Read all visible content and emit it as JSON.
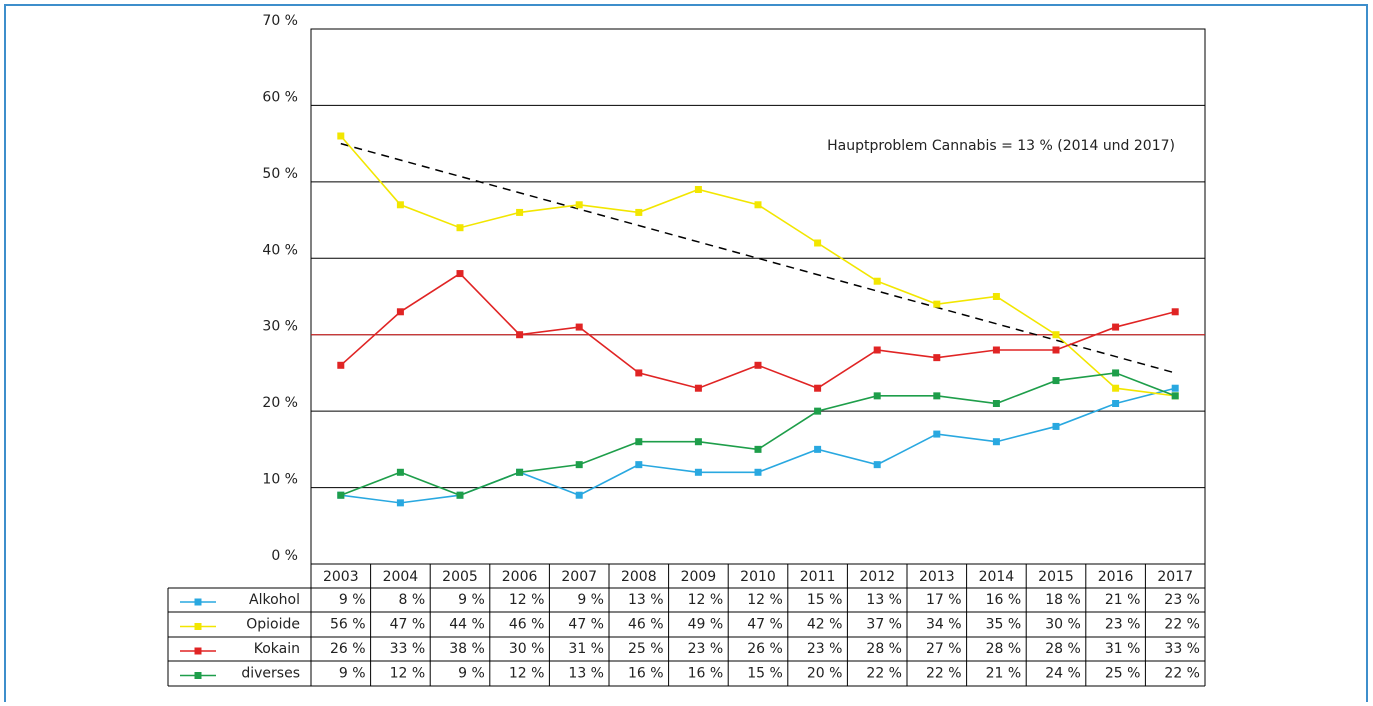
{
  "chart_data": {
    "type": "line",
    "categories": [
      "2003",
      "2004",
      "2005",
      "2006",
      "2007",
      "2008",
      "2009",
      "2010",
      "2011",
      "2012",
      "2013",
      "2014",
      "2015",
      "2016",
      "2017"
    ],
    "series": [
      {
        "name": "Alkohol",
        "color": "#29a8e0",
        "values": [
          9,
          8,
          9,
          12,
          9,
          13,
          12,
          12,
          15,
          13,
          17,
          16,
          18,
          21,
          23
        ],
        "value_labels": [
          "9 %",
          "8 %",
          "9 %",
          "12 %",
          "9 %",
          "13 %",
          "12 %",
          "12 %",
          "15 %",
          "13 %",
          "17 %",
          "16 %",
          "18 %",
          "21 %",
          "23 %"
        ]
      },
      {
        "name": "Opioide",
        "color": "#f2e600",
        "values": [
          56,
          47,
          44,
          46,
          47,
          46,
          49,
          47,
          42,
          37,
          34,
          35,
          30,
          23,
          22
        ],
        "value_labels": [
          "56 %",
          "47 %",
          "44 %",
          "46 %",
          "47 %",
          "46 %",
          "49 %",
          "47 %",
          "42 %",
          "37 %",
          "34 %",
          "35 %",
          "30 %",
          "23 %",
          "22 %"
        ]
      },
      {
        "name": "Kokain",
        "color": "#e02424",
        "values": [
          26,
          33,
          38,
          30,
          31,
          25,
          23,
          26,
          23,
          28,
          27,
          28,
          28,
          31,
          33
        ],
        "value_labels": [
          "26 %",
          "33 %",
          "38 %",
          "30 %",
          "31 %",
          "25 %",
          "23 %",
          "26 %",
          "23 %",
          "28 %",
          "27 %",
          "28 %",
          "28 %",
          "31 %",
          "33 %"
        ]
      },
      {
        "name": "diverses",
        "color": "#1e9e4a",
        "values": [
          9,
          12,
          9,
          12,
          13,
          16,
          16,
          15,
          20,
          22,
          22,
          21,
          24,
          25,
          22
        ],
        "value_labels": [
          "9 %",
          "12 %",
          "9 %",
          "12 %",
          "13 %",
          "16 %",
          "16 %",
          "15 %",
          "20 %",
          "22 %",
          "22 %",
          "21 %",
          "24 %",
          "25 %",
          "22 %"
        ]
      }
    ],
    "trend_line": {
      "values": [
        55,
        25
      ],
      "color": "#000000"
    },
    "reference_line": {
      "value": 30,
      "color": "#e02424"
    },
    "annotation": "Hauptproblem Cannabis = 13 % (2014 und 2017)",
    "ylim": [
      0,
      70
    ],
    "yticks": [
      {
        "value": 0,
        "label": "0 %"
      },
      {
        "value": 10,
        "label": "10 %"
      },
      {
        "value": 20,
        "label": "20 %"
      },
      {
        "value": 30,
        "label": "30 %"
      },
      {
        "value": 40,
        "label": "40 %"
      },
      {
        "value": 50,
        "label": "50 %"
      },
      {
        "value": 60,
        "label": "60 %"
      },
      {
        "value": 70,
        "label": "70 %"
      }
    ],
    "grid": true
  }
}
